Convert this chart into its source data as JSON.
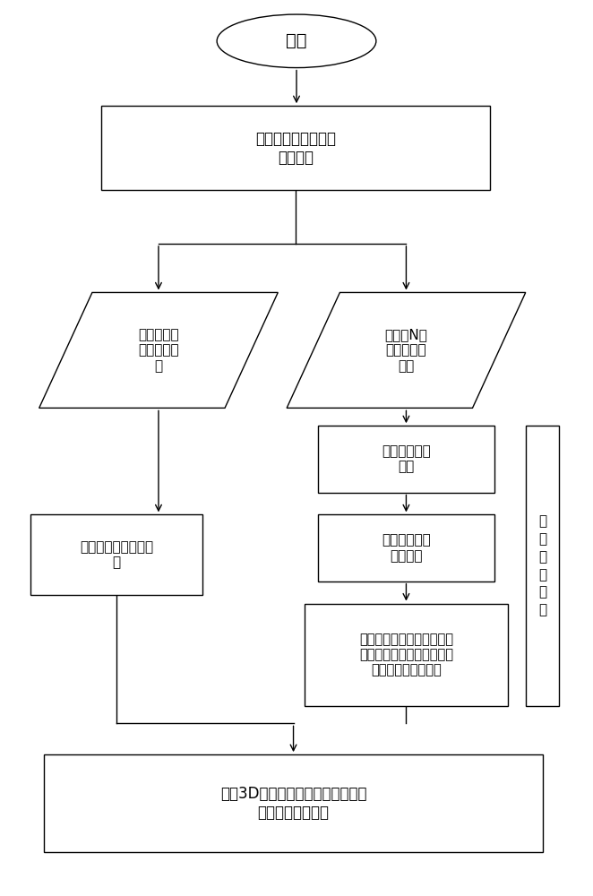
{
  "bg_color": "#ffffff",
  "line_color": "#000000",
  "text_color": "#000000",
  "font_size": 11,
  "start_text": "开始",
  "box1_text": "打开控制所有振镜的\n控制软件",
  "para_left_text": "加载第一振\n镜的标定文\n件",
  "para_right_text": "加载第N个\n振镜的标定\n文件",
  "br1_text": "加载偏差标定\n文件",
  "br2_text": "输入预设打印\n路径向量",
  "br3_text": "根据偏差标定文件对预设打\n印路径向量进行预处理，得\n出实际打印路径向量",
  "bl_text": "输入预设打印路径向\n量",
  "fin_text": "开始3D打印，所有振镜同时扫描，\n直至零件打印完成",
  "label_text": "打\n印\n路\n径\n标\n定"
}
